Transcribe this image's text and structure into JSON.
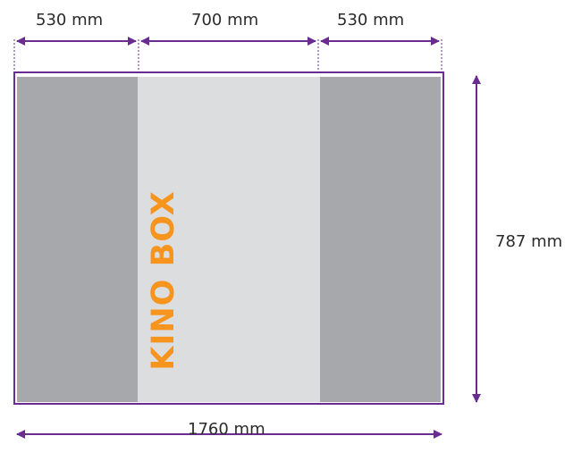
{
  "dimensions": {
    "left_panel": "530 mm",
    "center_panel": "700 mm",
    "right_panel": "530 mm",
    "total_width": "1760 mm",
    "height": "787 mm"
  },
  "product_name": "KINO BOX",
  "colors": {
    "arrow": "#6b2c91",
    "outline": "#6b2c91",
    "side_panel": "#a7a8ab",
    "center_panel": "#dcddde",
    "product_text": "#f7941d"
  }
}
